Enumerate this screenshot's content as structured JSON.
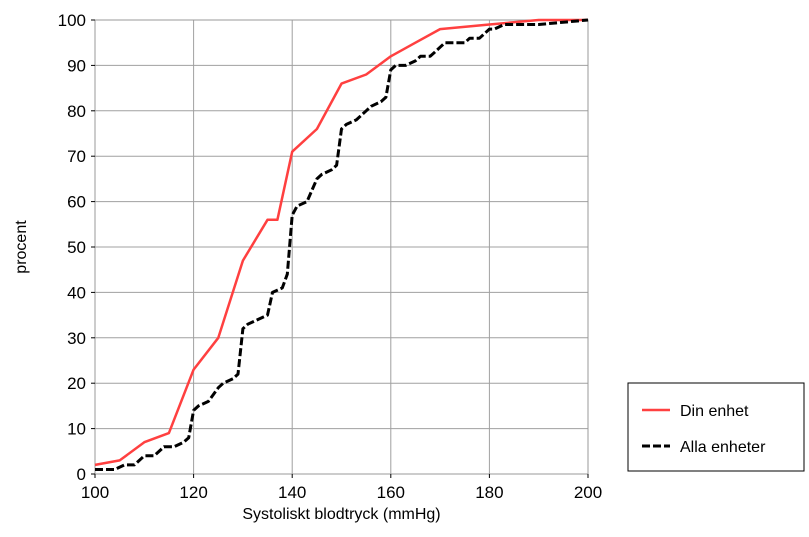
{
  "chart_data": {
    "type": "line",
    "title": "",
    "xlabel": "Systoliskt blodtryck (mmHg)",
    "ylabel": "procent",
    "xlim": [
      100,
      200
    ],
    "ylim": [
      0,
      100
    ],
    "xticks": [
      "100",
      "120",
      "140",
      "160",
      "180",
      "200"
    ],
    "yticks": [
      "0",
      "10",
      "20",
      "30",
      "40",
      "50",
      "60",
      "70",
      "80",
      "90",
      "100"
    ],
    "grid": true,
    "legend_position": "right-bottom",
    "series": [
      {
        "name": "Din enhet",
        "color": "#ff4040",
        "style": "solid",
        "x": [
          100,
          105,
          110,
          115,
          120,
          125,
          130,
          135,
          137,
          140,
          145,
          150,
          155,
          160,
          165,
          170,
          180,
          190,
          200
        ],
        "y": [
          2,
          3,
          7,
          9,
          23,
          30,
          47,
          56,
          56,
          71,
          76,
          86,
          88,
          92,
          95,
          98,
          99,
          100,
          100
        ]
      },
      {
        "name": "Alla enheter",
        "color": "#000000",
        "style": "dashed",
        "x": [
          100,
          104,
          106,
          108,
          110,
          112,
          114,
          116,
          118,
          119,
          120,
          121,
          123,
          125,
          126,
          128,
          129,
          130,
          131,
          133,
          135,
          136,
          138,
          139,
          140,
          141,
          143,
          145,
          146,
          148,
          149,
          150,
          151,
          153,
          155,
          156,
          158,
          159,
          160,
          161,
          163,
          165,
          166,
          168,
          169,
          170,
          171,
          173,
          175,
          176,
          178,
          179,
          180,
          181,
          183,
          185,
          190,
          200
        ],
        "y": [
          1,
          1,
          2,
          2,
          4,
          4,
          6,
          6,
          7,
          8,
          14,
          15,
          16,
          19,
          20,
          21,
          22,
          32,
          33,
          34,
          35,
          40,
          41,
          44,
          57,
          59,
          60,
          65,
          66,
          67,
          68,
          76,
          77,
          78,
          80,
          81,
          82,
          83,
          89,
          90,
          90,
          91,
          92,
          92,
          93,
          94,
          95,
          95,
          95,
          96,
          96,
          97,
          98,
          98,
          99,
          99,
          99,
          100
        ]
      }
    ]
  }
}
